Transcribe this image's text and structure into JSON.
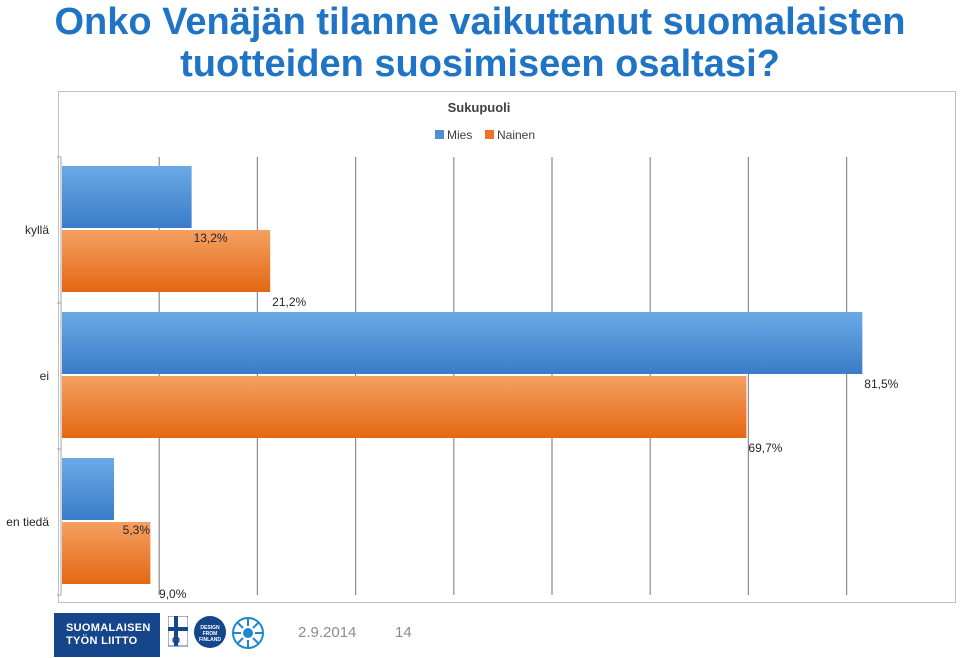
{
  "slide": {
    "title_line1": "Onko Venäjän tilanne vaikuttanut suomalaisten",
    "title_line2": "tuotteiden suosimiseen osaltasi?"
  },
  "chart_data": {
    "type": "bar",
    "orientation": "horizontal",
    "title": "Sukupuoli",
    "categories": [
      "kyllä",
      "ei",
      "en tiedä"
    ],
    "series": [
      {
        "name": "Mies",
        "values": [
          13.2,
          81.5,
          5.3
        ],
        "labels": [
          "13,2%",
          "81,5%",
          "5,3%"
        ],
        "color": "#4f8fd6"
      },
      {
        "name": "Nainen",
        "values": [
          21.2,
          69.7,
          9.0
        ],
        "labels": [
          "21,2%",
          "69,7%",
          "9,0%"
        ],
        "color": "#ec7424"
      }
    ],
    "xlim": [
      0,
      80
    ],
    "grid": true,
    "legend": "top"
  },
  "footer": {
    "logo_text_line1": "SUOMALAISEN",
    "logo_text_line2": "TYÖN LIITTO",
    "design_logo_text": "DESIGN FROM FINLAND",
    "date": "2.9.2014",
    "page": "14"
  }
}
